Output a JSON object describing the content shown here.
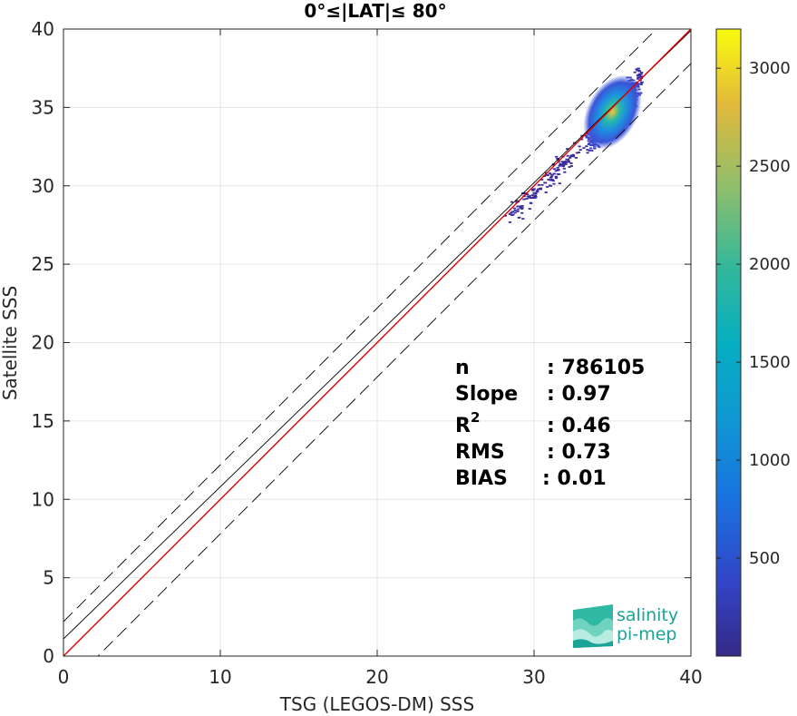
{
  "chart_data": {
    "type": "scatter",
    "title": "0°≤|LAT|≤ 80°",
    "xlabel": "TSG (LEGOS-DM) SSS",
    "ylabel": "Satellite SSS",
    "xlim": [
      0,
      40
    ],
    "ylim": [
      0,
      40
    ],
    "xticks": [
      0,
      10,
      20,
      30,
      40
    ],
    "yticks": [
      0,
      5,
      10,
      15,
      20,
      25,
      30,
      35,
      40
    ],
    "grid": true,
    "lines": [
      {
        "name": "regression",
        "color": "#000000",
        "slope": 0.97,
        "intercept": 1.1
      },
      {
        "name": "one-to-one",
        "color": "#e00000",
        "slope": 1.0,
        "intercept": 0
      },
      {
        "name": "upper-bound",
        "color": "#000000",
        "dash": true,
        "slope": 1.0,
        "intercept": 2.2
      },
      {
        "name": "lower-bound",
        "color": "#000000",
        "dash": true,
        "slope": 1.0,
        "intercept": -2.2
      }
    ],
    "density_center": {
      "x": 35,
      "y": 34.7
    },
    "colorbar": {
      "min": 0,
      "max": 3200,
      "ticks": [
        500,
        1000,
        1500,
        2000,
        2500,
        3000
      ],
      "colormap": "parula"
    },
    "stats": [
      {
        "label": "n",
        "value": ": 786105"
      },
      {
        "label": "Slope",
        "value": ": 0.97"
      },
      {
        "label": "R",
        "sup": "2",
        "value": ": 0.46"
      },
      {
        "label": "RMS",
        "value": ": 0.73"
      },
      {
        "label": "BIAS",
        "value": ": 0.01"
      }
    ]
  },
  "logo": {
    "line1": "salinity",
    "line2": "pi-mep"
  }
}
